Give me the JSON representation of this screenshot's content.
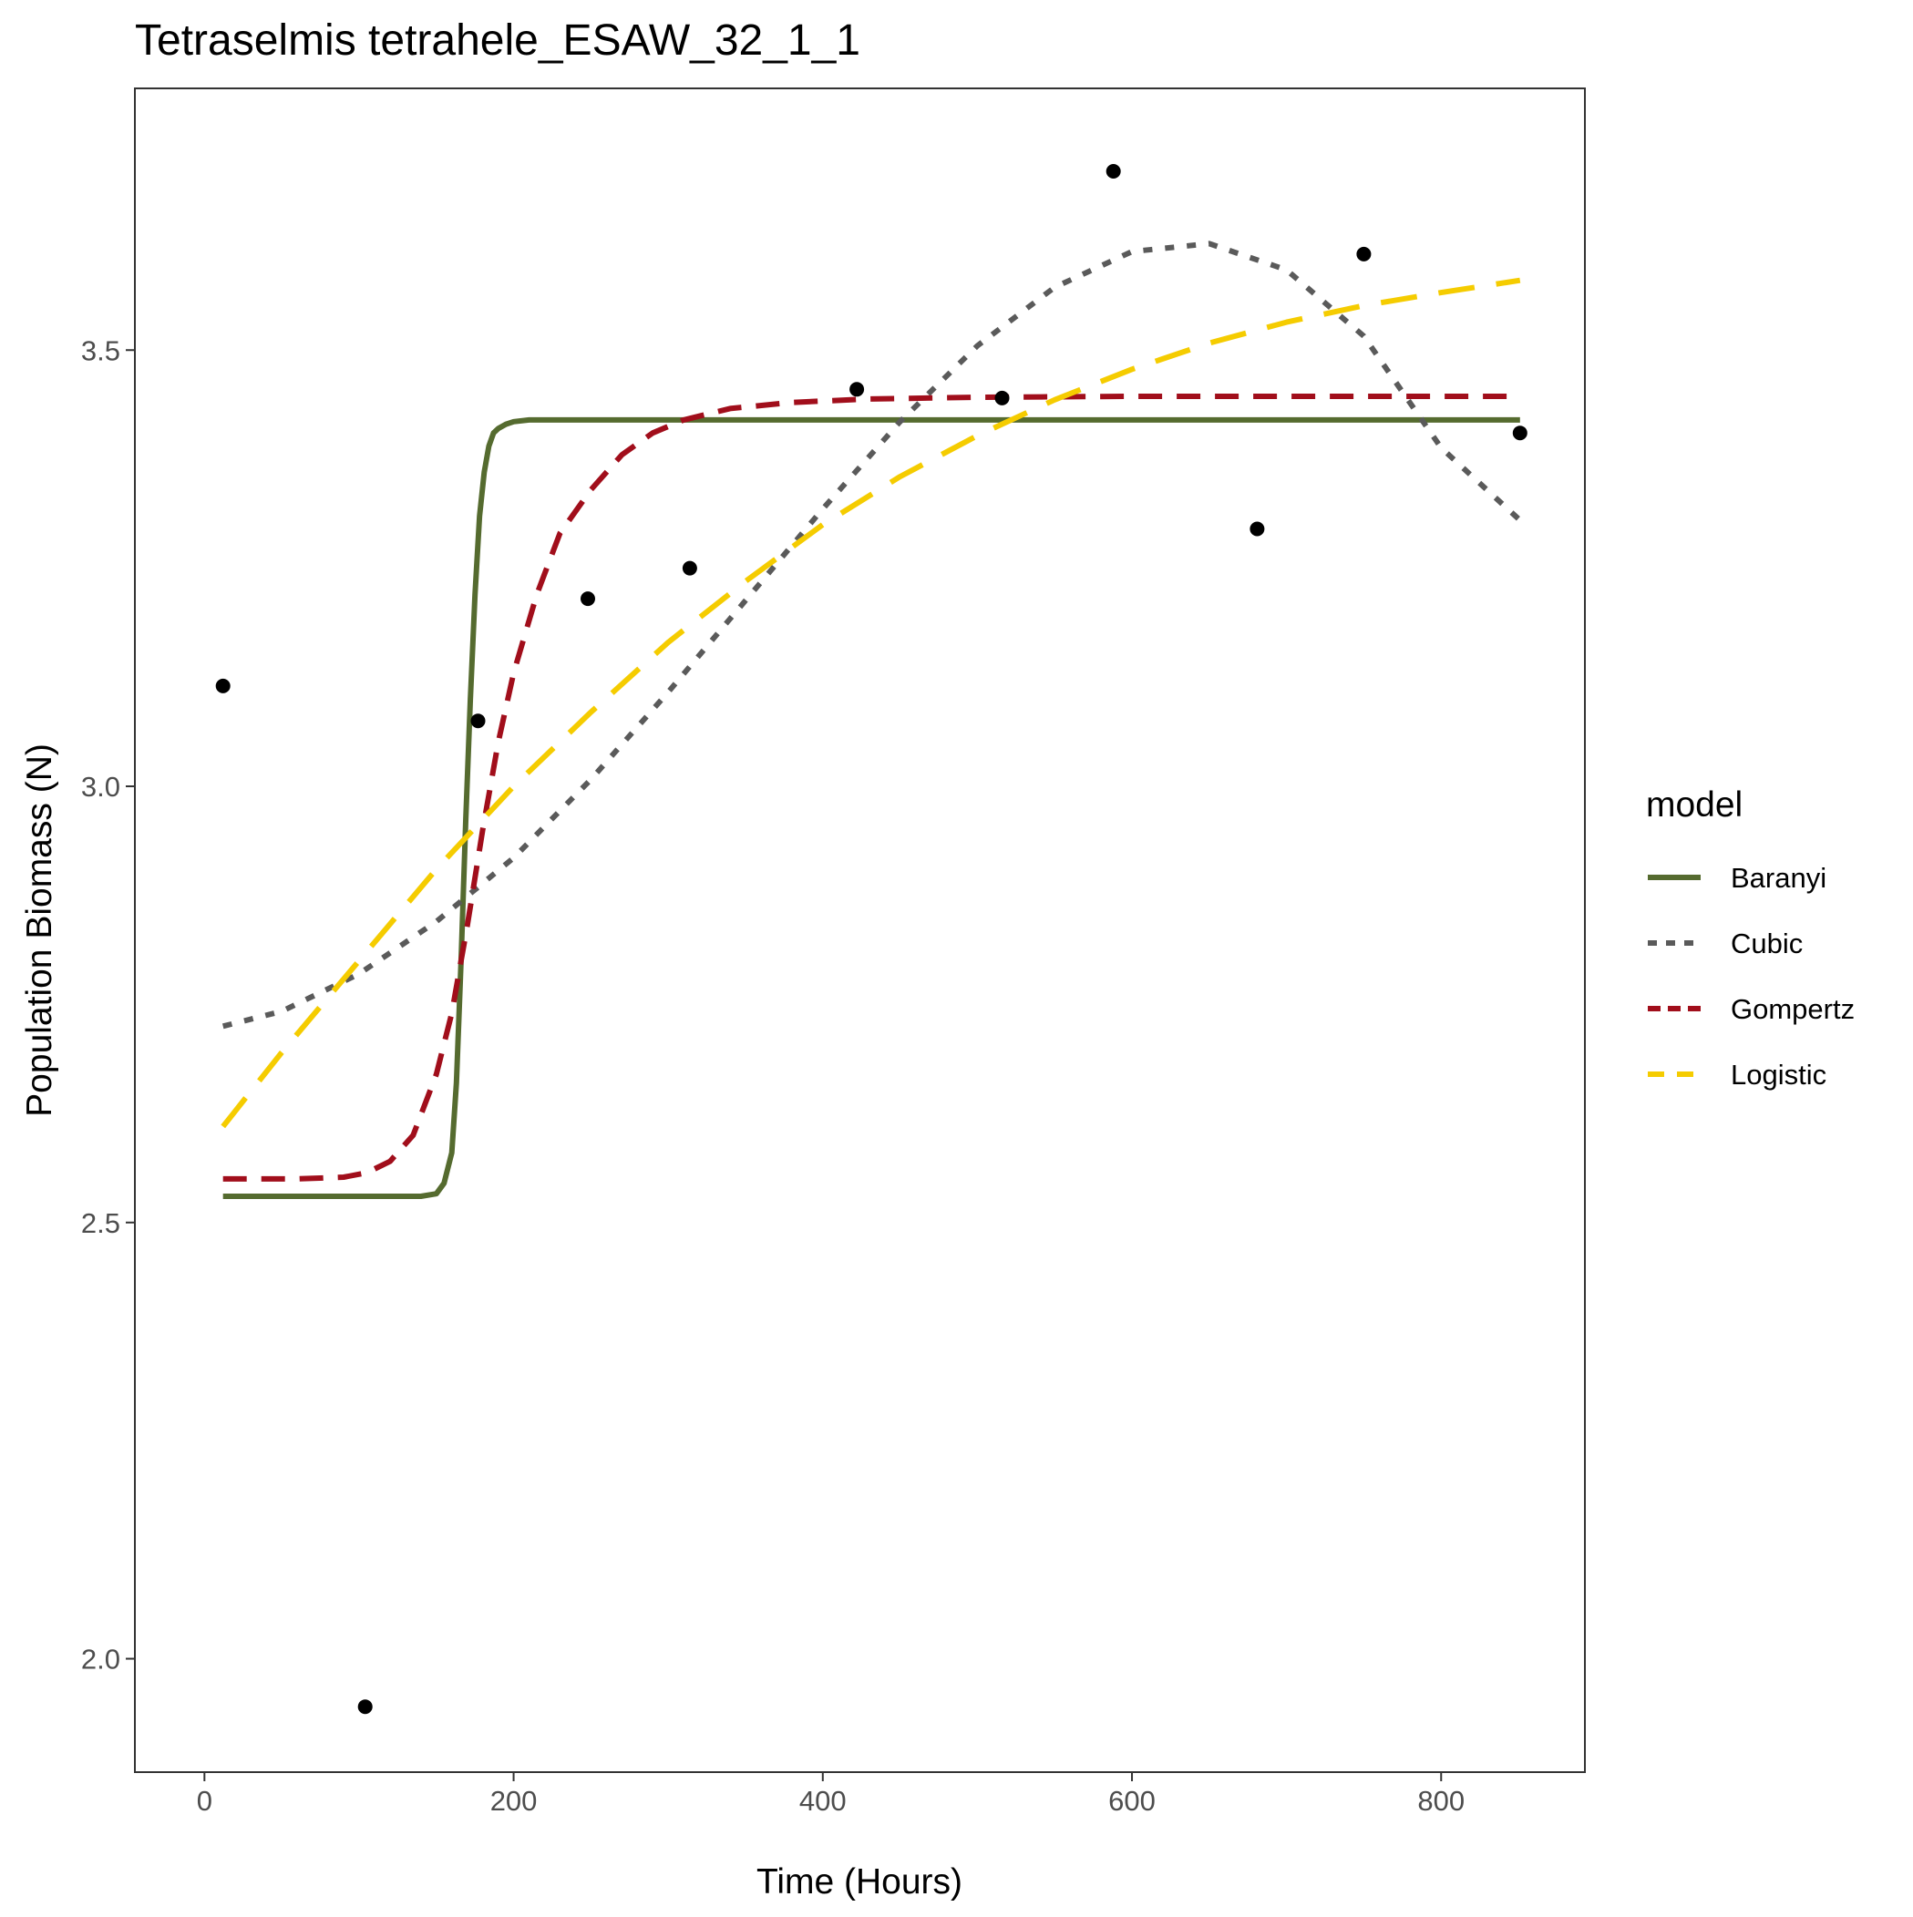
{
  "chart_data": {
    "type": "line",
    "title": "Tetraselmis tetrahele_ESAW_32_1_1",
    "xlabel": "Time (Hours)",
    "ylabel": "Population Biomass (N)",
    "xlim": [
      -45,
      893
    ],
    "ylim": [
      1.87,
      3.8
    ],
    "x_ticks": [
      0,
      200,
      400,
      600,
      800
    ],
    "x_tick_labels": [
      "0",
      "200",
      "400",
      "600",
      "800"
    ],
    "y_ticks": [
      2.0,
      2.5,
      3.0,
      3.5
    ],
    "y_tick_labels": [
      "2.0",
      "2.5",
      "3.0",
      "3.5"
    ],
    "grid": false,
    "legend": {
      "title": "model",
      "position": "right"
    },
    "points": {
      "x": [
        12,
        104,
        177,
        248,
        314,
        422,
        516,
        588,
        681,
        750,
        851
      ],
      "y": [
        3.115,
        1.945,
        3.075,
        3.215,
        3.25,
        3.455,
        3.445,
        3.705,
        3.295,
        3.61,
        3.405
      ],
      "color": "#000000"
    },
    "series": [
      {
        "name": "Baranyi",
        "color": "#556b2f",
        "dash": "solid",
        "x": [
          12,
          100,
          140,
          150,
          155,
          160,
          163,
          166,
          169,
          172,
          175,
          178,
          181,
          184,
          187,
          190,
          195,
          200,
          210,
          250,
          400,
          600,
          851
        ],
        "y": [
          2.53,
          2.53,
          2.53,
          2.533,
          2.545,
          2.58,
          2.66,
          2.8,
          2.96,
          3.1,
          3.22,
          3.31,
          3.36,
          3.39,
          3.405,
          3.41,
          3.415,
          3.418,
          3.42,
          3.42,
          3.42,
          3.42,
          3.42
        ]
      },
      {
        "name": "Cubic",
        "color": "#5a5a5a",
        "dash": "dot",
        "x": [
          12,
          50,
          100,
          150,
          200,
          250,
          300,
          350,
          400,
          450,
          500,
          550,
          600,
          650,
          700,
          750,
          800,
          851
        ],
        "y": [
          2.725,
          2.742,
          2.785,
          2.845,
          2.918,
          3.008,
          3.108,
          3.213,
          3.318,
          3.418,
          3.505,
          3.572,
          3.613,
          3.622,
          3.592,
          3.516,
          3.388,
          3.305
        ]
      },
      {
        "name": "Gompertz",
        "color": "#a10e1b",
        "dash": "dash",
        "x": [
          12,
          60,
          90,
          105,
          120,
          135,
          150,
          160,
          170,
          180,
          190,
          200,
          215,
          230,
          250,
          270,
          290,
          310,
          340,
          380,
          430,
          500,
          600,
          851
        ],
        "y": [
          2.55,
          2.55,
          2.552,
          2.557,
          2.57,
          2.6,
          2.67,
          2.74,
          2.84,
          2.95,
          3.05,
          3.13,
          3.22,
          3.29,
          3.34,
          3.38,
          3.405,
          3.42,
          3.433,
          3.44,
          3.444,
          3.446,
          3.447,
          3.447
        ]
      },
      {
        "name": "Logistic",
        "color": "#f5cc00",
        "dash": "longdash",
        "x": [
          12,
          50,
          100,
          150,
          200,
          250,
          300,
          350,
          400,
          450,
          500,
          550,
          600,
          650,
          700,
          750,
          800,
          851
        ],
        "y": [
          2.61,
          2.695,
          2.8,
          2.905,
          3.0,
          3.085,
          3.165,
          3.235,
          3.3,
          3.355,
          3.402,
          3.443,
          3.478,
          3.508,
          3.532,
          3.551,
          3.566,
          3.58
        ]
      }
    ]
  }
}
